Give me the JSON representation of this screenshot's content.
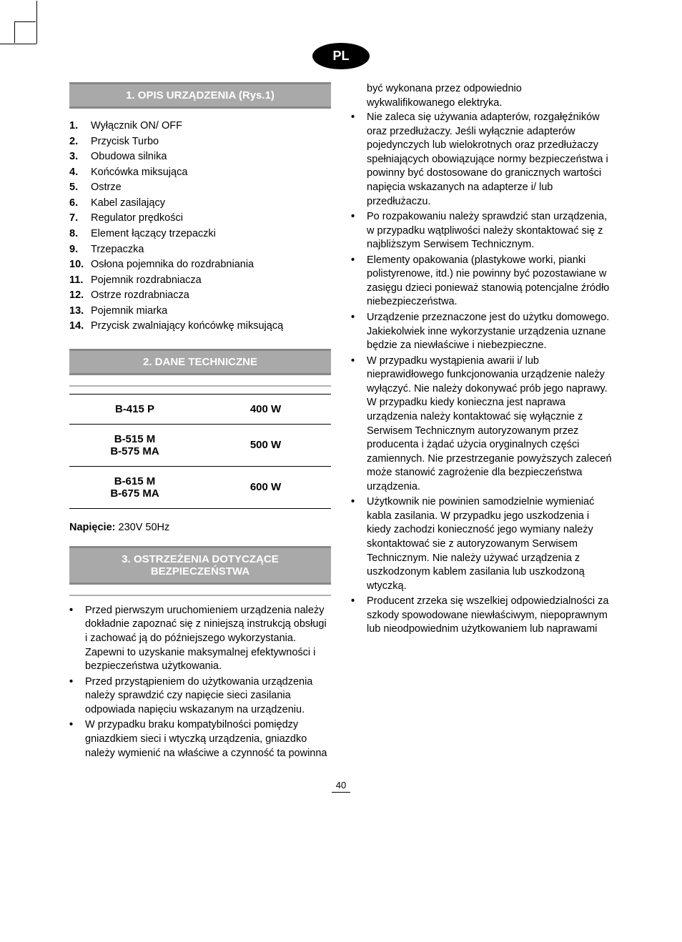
{
  "badge": "PL",
  "section1": {
    "title": "1. OPIS URZĄDZENIA (Rys.1)",
    "items": [
      {
        "n": "1.",
        "t": "Wyłącznik ON/ OFF"
      },
      {
        "n": "2.",
        "t": "Przycisk Turbo"
      },
      {
        "n": "3.",
        "t": "Obudowa silnika"
      },
      {
        "n": "4.",
        "t": "Końcówka miksująca"
      },
      {
        "n": "5.",
        "t": "Ostrze"
      },
      {
        "n": "6.",
        "t": "Kabel zasilający"
      },
      {
        "n": "7.",
        "t": "Regulator prędkości"
      },
      {
        "n": "8.",
        "t": "Element łączący trzepaczki"
      },
      {
        "n": "9.",
        "t": "Trzepaczka"
      },
      {
        "n": "10.",
        "t": "Osłona pojemnika do rozdrabniania"
      },
      {
        "n": "11.",
        "t": "Pojemnik rozdrabniacza"
      },
      {
        "n": "12.",
        "t": "Ostrze rozdrabniacza"
      },
      {
        "n": "13.",
        "t": "Pojemnik miarka"
      },
      {
        "n": "14.",
        "t": "Przycisk zwalniający końcówkę miksującą"
      }
    ]
  },
  "section2": {
    "title": "2. DANE TECHNICZNE",
    "rows": [
      {
        "model": "B-415 P",
        "power": "400 W"
      },
      {
        "model": "B-515 M\nB-575 MA",
        "power": "500 W"
      },
      {
        "model": "B-615 M\nB-675 MA",
        "power": "600 W"
      }
    ],
    "voltage_label": "Napięcie:",
    "voltage_value": "230V 50Hz"
  },
  "section3": {
    "title": "3. OSTRZEŻENIA DOTYCZĄCE BEZPIECZEŃSTWA",
    "left_bullets": [
      "Przed pierwszym uruchomieniem urządzenia należy dokładnie zapoznać się z niniejszą instrukcją obsługi i zachować ją do późniejszego wykorzystania. Zapewni to uzyskanie maksymalnej efektywności i bezpieczeństwa użytkowania.",
      "Przed przystąpieniem do użytkowania urządzenia należy sprawdzić czy napięcie sieci zasilania odpowiada napięciu wskazanym na urządzeniu.",
      "W przypadku braku kompatybilności pomiędzy gniazdkiem sieci i wtyczką urządzenia, gniazdko należy wymienić na właściwe a czynność ta powinna"
    ],
    "right_continuation": "być wykonana przez odpowiednio wykwalifikowanego elektryka.",
    "right_bullets": [
      "Nie zaleca się używania adapterów, rozgałęźników oraz przedłużaczy. Jeśli wyłącznie adapterów pojedynczych lub wielokrotnych oraz przedłużaczy spełniających obowiązujące normy bezpieczeństwa i powinny być dostosowane do granicznych wartości napięcia wskazanych na adapterze i/ lub przedłużaczu.",
      "Po rozpakowaniu należy sprawdzić stan urządzenia, w przypadku wątpliwości należy skontaktować się z najbliższym Serwisem Technicznym.",
      "Elementy opakowania (plastykowe worki, pianki polistyrenowe, itd.) nie powinny być pozostawiane w zasięgu dzieci ponieważ stanowią potencjalne źródło niebezpieczeństwa.",
      "Urządzenie przeznaczone jest do użytku domowego. Jakiekolwiek inne wykorzystanie urządzenia uznane będzie za niewłaściwe i niebezpieczne.",
      "W przypadku wystąpienia awarii i/ lub nieprawidłowego funkcjonowania urządzenie należy wyłączyć. Nie należy dokonywać prób jego naprawy. W przypadku kiedy konieczna jest naprawa urządzenia należy kontaktować się wyłącznie z Serwisem Technicznym autoryzowanym przez producenta i żądać użycia oryginalnych części zamiennych. Nie przestrzeganie powyższych zaleceń może stanowić zagrożenie dla bezpieczeństwa urządzenia.",
      "Użytkownik nie powinien samodzielnie wymieniać kabla zasilania. W przypadku jego uszkodzenia i kiedy zachodzi konieczność jego wymiany należy skontaktować sie z autoryzowanym Serwisem Technicznym. Nie należy używać urządzenia z uszkodzonym kablem zasilania lub uszkodzoną wtyczką.",
      "Producent zrzeka się wszelkiej odpowiedzialności za szkody spowodowane niewłaściwym, niepoprawnym lub nieodpowiednim użytkowaniem lub naprawami"
    ]
  },
  "page_number": "40"
}
